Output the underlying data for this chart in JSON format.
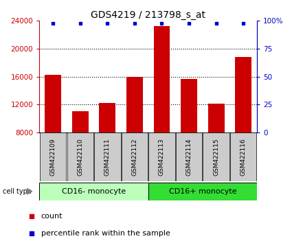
{
  "title": "GDS4219 / 213798_s_at",
  "samples": [
    "GSM422109",
    "GSM422110",
    "GSM422111",
    "GSM422112",
    "GSM422113",
    "GSM422114",
    "GSM422115",
    "GSM422116"
  ],
  "counts": [
    16200,
    11000,
    12200,
    16000,
    23200,
    15700,
    12100,
    18800
  ],
  "y_min": 8000,
  "y_max": 24000,
  "y_ticks": [
    8000,
    12000,
    16000,
    20000,
    24000
  ],
  "right_y_ticks": [
    0,
    25,
    50,
    75,
    100
  ],
  "right_y_labels": [
    "0",
    "25",
    "50",
    "75",
    "100%"
  ],
  "bar_color": "#cc0000",
  "percentile_color": "#0000cc",
  "group1_label": "CD16- monocyte",
  "group2_label": "CD16+ monocyte",
  "group1_indices": [
    0,
    1,
    2,
    3
  ],
  "group2_indices": [
    4,
    5,
    6,
    7
  ],
  "group1_bg": "#bbffbb",
  "group2_bg": "#33dd33",
  "sample_bg": "#cccccc",
  "legend_count_label": "count",
  "legend_pct_label": "percentile rank within the sample",
  "cell_type_label": "cell type",
  "title_fontsize": 10,
  "tick_fontsize": 7.5,
  "sample_fontsize": 6.5,
  "celltype_fontsize": 8,
  "legend_fontsize": 8
}
